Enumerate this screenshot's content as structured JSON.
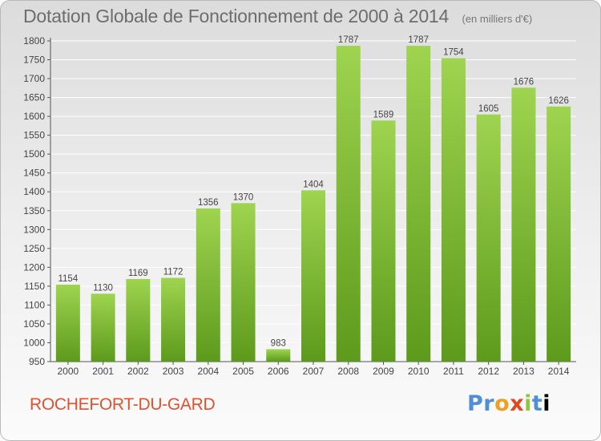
{
  "header": {
    "title": "Dotation Globale de Fonctionnement de 2000 à 2014",
    "unit": "(en milliers d'€)"
  },
  "footer": {
    "commune": "ROCHEFORT-DU-GARD",
    "logo": "Proxiti"
  },
  "colors": {
    "bar_top": "#9ed44f",
    "bar_bottom": "#5d9a1c",
    "grid": "#ffffff",
    "commune_text": "#e0522f"
  },
  "chart_data": {
    "type": "bar",
    "title": "Dotation Globale de Fonctionnement de 2000 à 2014",
    "subtitle": "(en milliers d'€)",
    "categories": [
      "2000",
      "2001",
      "2002",
      "2003",
      "2004",
      "2005",
      "2006",
      "2007",
      "2008",
      "2009",
      "2010",
      "2011",
      "2012",
      "2013",
      "2014"
    ],
    "values": [
      1154,
      1130,
      1169,
      1172,
      1356,
      1370,
      983,
      1404,
      1787,
      1589,
      1787,
      1754,
      1605,
      1676,
      1626
    ],
    "ylim": [
      950,
      1800
    ],
    "yticks": [
      950,
      1000,
      1050,
      1100,
      1150,
      1200,
      1250,
      1300,
      1350,
      1400,
      1450,
      1500,
      1550,
      1600,
      1650,
      1700,
      1750,
      1800
    ],
    "grid": true,
    "legend": "none"
  }
}
